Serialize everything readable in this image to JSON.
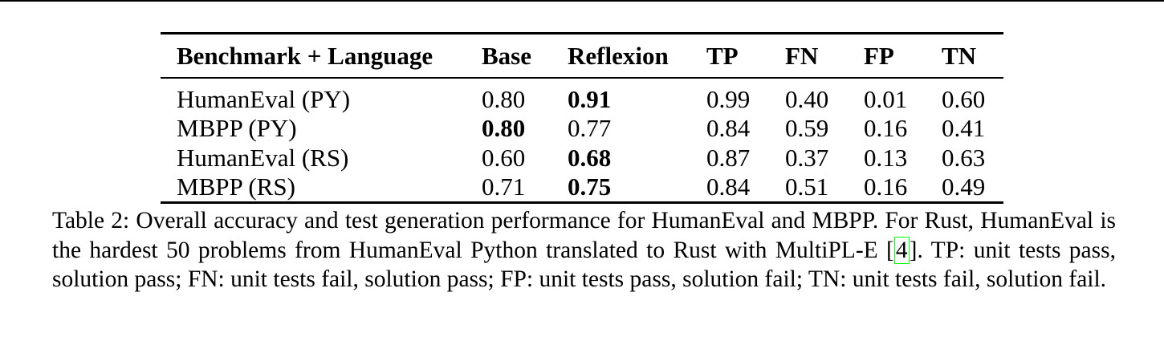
{
  "table": {
    "headers": [
      "Benchmark + Language",
      "Base",
      "Reflexion",
      "TP",
      "FN",
      "FP",
      "TN"
    ],
    "rows": [
      {
        "benchmark": "HumanEval (PY)",
        "base": "0.80",
        "reflexion": "0.91",
        "tp": "0.99",
        "fn": "0.40",
        "fp": "0.01",
        "tn": "0.60",
        "bold": "reflexion"
      },
      {
        "benchmark": "MBPP (PY)",
        "base": "0.80",
        "reflexion": "0.77",
        "tp": "0.84",
        "fn": "0.59",
        "fp": "0.16",
        "tn": "0.41",
        "bold": "base"
      },
      {
        "benchmark": "HumanEval (RS)",
        "base": "0.60",
        "reflexion": "0.68",
        "tp": "0.87",
        "fn": "0.37",
        "fp": "0.13",
        "tn": "0.63",
        "bold": "reflexion"
      },
      {
        "benchmark": "MBPP (RS)",
        "base": "0.71",
        "reflexion": "0.75",
        "tp": "0.84",
        "fn": "0.51",
        "fp": "0.16",
        "tn": "0.49",
        "bold": "reflexion"
      }
    ]
  },
  "caption": {
    "part1": "Table 2: Overall accuracy and test generation performance for HumanEval and MBPP. For Rust, HumanEval is the hardest 50 problems from HumanEval Python translated to Rust with MultiPL-E [",
    "citation": "4",
    "part2": "]. TP: unit tests pass, solution pass; FN: unit tests fail, solution pass; FP: unit tests pass, solution fail; TN: unit tests fail, solution fail."
  }
}
